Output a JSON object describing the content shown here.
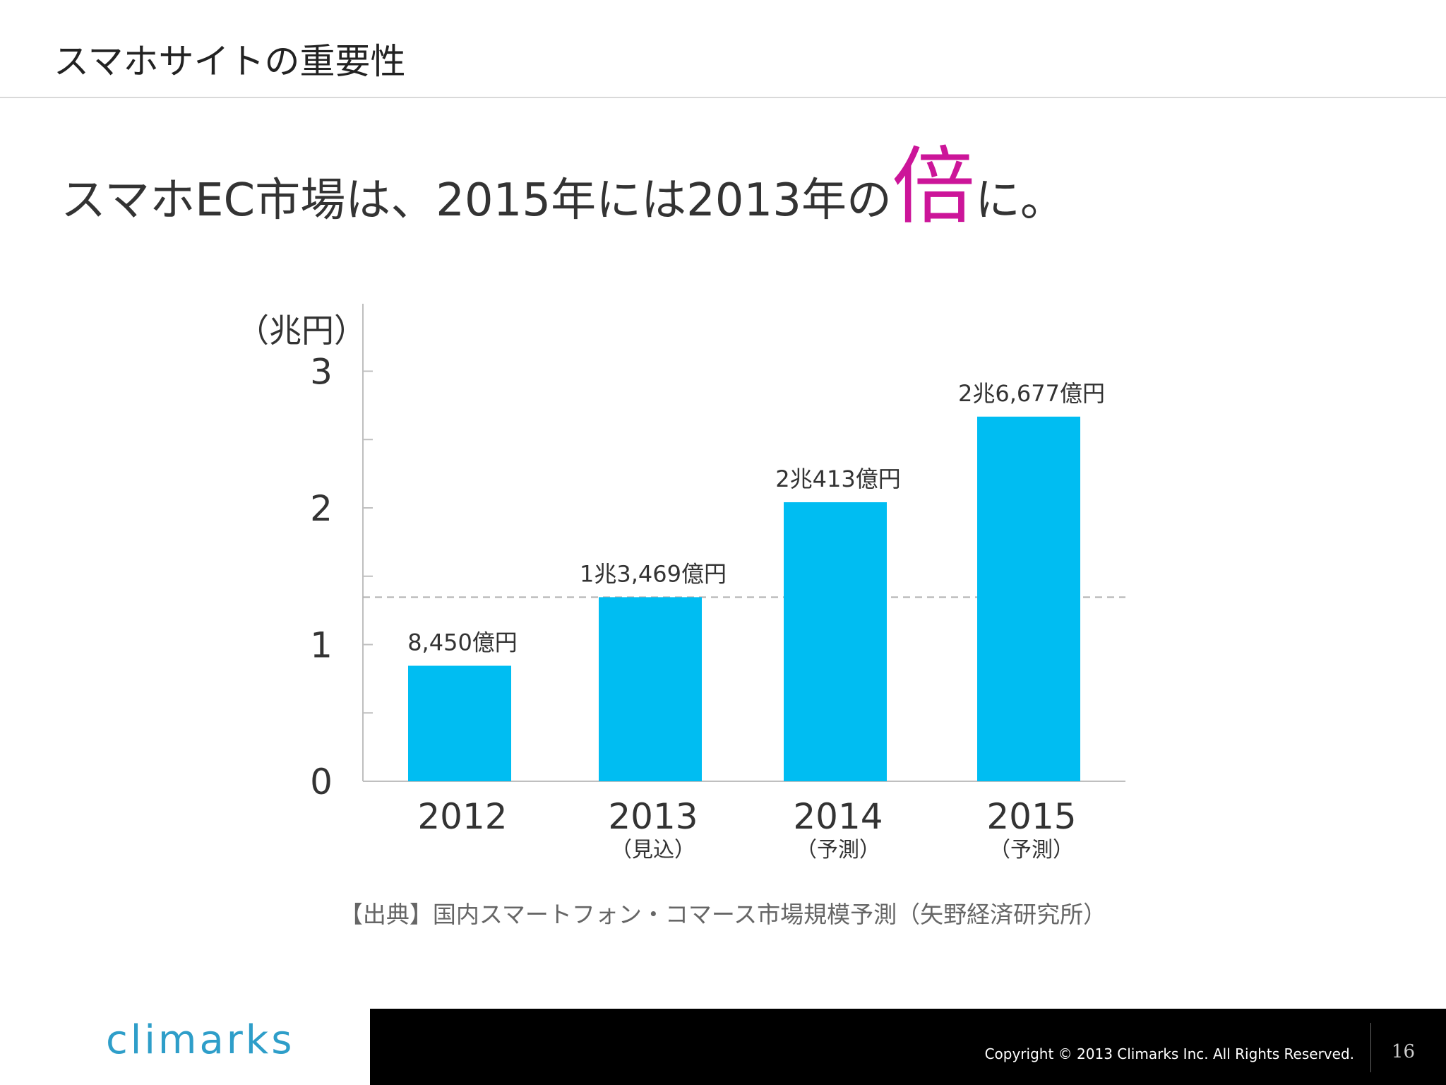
{
  "slide": {
    "title": "スマホサイトの重要性",
    "headline_part1": "スマホEC市場は、2015年には2013年の",
    "headline_emphasis": "倍",
    "headline_part2": "に。",
    "accent_color": "#cc1599"
  },
  "chart_data": {
    "type": "bar",
    "unit_label": "（兆円）",
    "categories": [
      "2012",
      "2013",
      "2014",
      "2015"
    ],
    "category_notes": [
      "",
      "（見込）",
      "（予測）",
      "（予測）"
    ],
    "values": [
      0.845,
      1.3469,
      2.0413,
      2.6677
    ],
    "data_labels": [
      "8,450億円",
      "1兆3,469億円",
      "2兆413億円",
      "2兆6,677億円"
    ],
    "ylim": [
      0,
      3.5
    ],
    "y_ticks": [
      0,
      1,
      2,
      3
    ],
    "reference_line_value": 1.3469,
    "bar_color": "#00bdf2",
    "grid": false
  },
  "source": "【出典】国内スマートフォン・コマース市場規模予測（矢野経済研究所）",
  "footer": {
    "logo_text": "climarks",
    "copyright": "Copyright © 2013 Climarks Inc. All Rights Reserved.",
    "page_number": "16"
  }
}
